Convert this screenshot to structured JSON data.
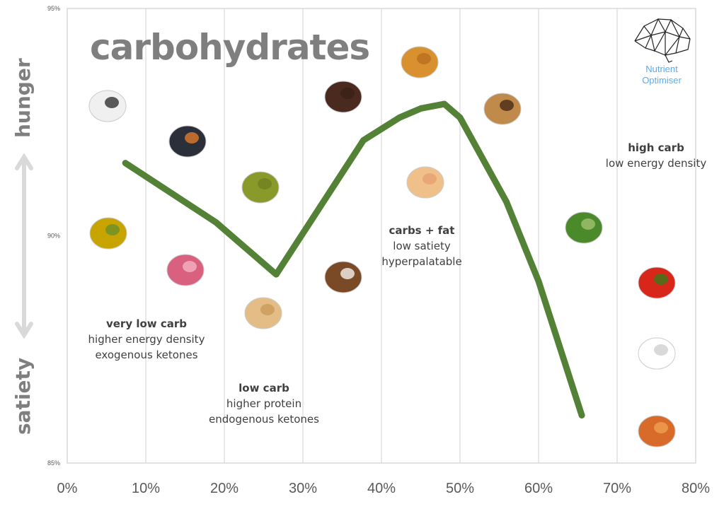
{
  "chart_data": {
    "type": "line",
    "title": "carbohydrates",
    "xlabel": "",
    "ylabel": "",
    "xlim": [
      0,
      80
    ],
    "ylim": [
      85,
      95
    ],
    "x_ticks": [
      "0%",
      "10%",
      "20%",
      "30%",
      "40%",
      "50%",
      "60%",
      "70%",
      "80%"
    ],
    "y_ticks": [
      "85%",
      "90%",
      "95%"
    ],
    "grid": "vertical",
    "series": [
      {
        "color": "#538135",
        "x": [
          7.4,
          18.9,
          26.6,
          37.7,
          42.3,
          45.0,
          48.0,
          50.0,
          55.9,
          60.0,
          65.5
        ],
        "y": [
          91.6,
          90.3,
          89.15,
          92.1,
          92.6,
          92.8,
          92.9,
          92.6,
          90.75,
          89.0,
          86.05
        ]
      }
    ],
    "side_labels": {
      "top": "hunger",
      "bottom": "satiety"
    },
    "annotations": [
      {
        "bold": "very low carb",
        "lines": [
          "higher energy density",
          "exogenous ketones"
        ]
      },
      {
        "bold": "low carb",
        "lines": [
          "higher protein",
          "endogenous ketones"
        ]
      },
      {
        "bold": "carbs + fat",
        "lines": [
          "low satiety",
          "hyperpalatable"
        ]
      },
      {
        "bold": "high carb",
        "lines": [
          "low energy density"
        ]
      }
    ],
    "foods": [
      "butter-coffee",
      "mussel",
      "olive-oil",
      "octopus",
      "olives",
      "cashews",
      "coconut",
      "chocolate",
      "croissant",
      "donut",
      "cookie",
      "broccoli",
      "tomato",
      "rice",
      "sweet-potato"
    ]
  },
  "logo": {
    "line1": "Nutrient",
    "line2": "Optimiser",
    "color": "#5aabf0"
  }
}
